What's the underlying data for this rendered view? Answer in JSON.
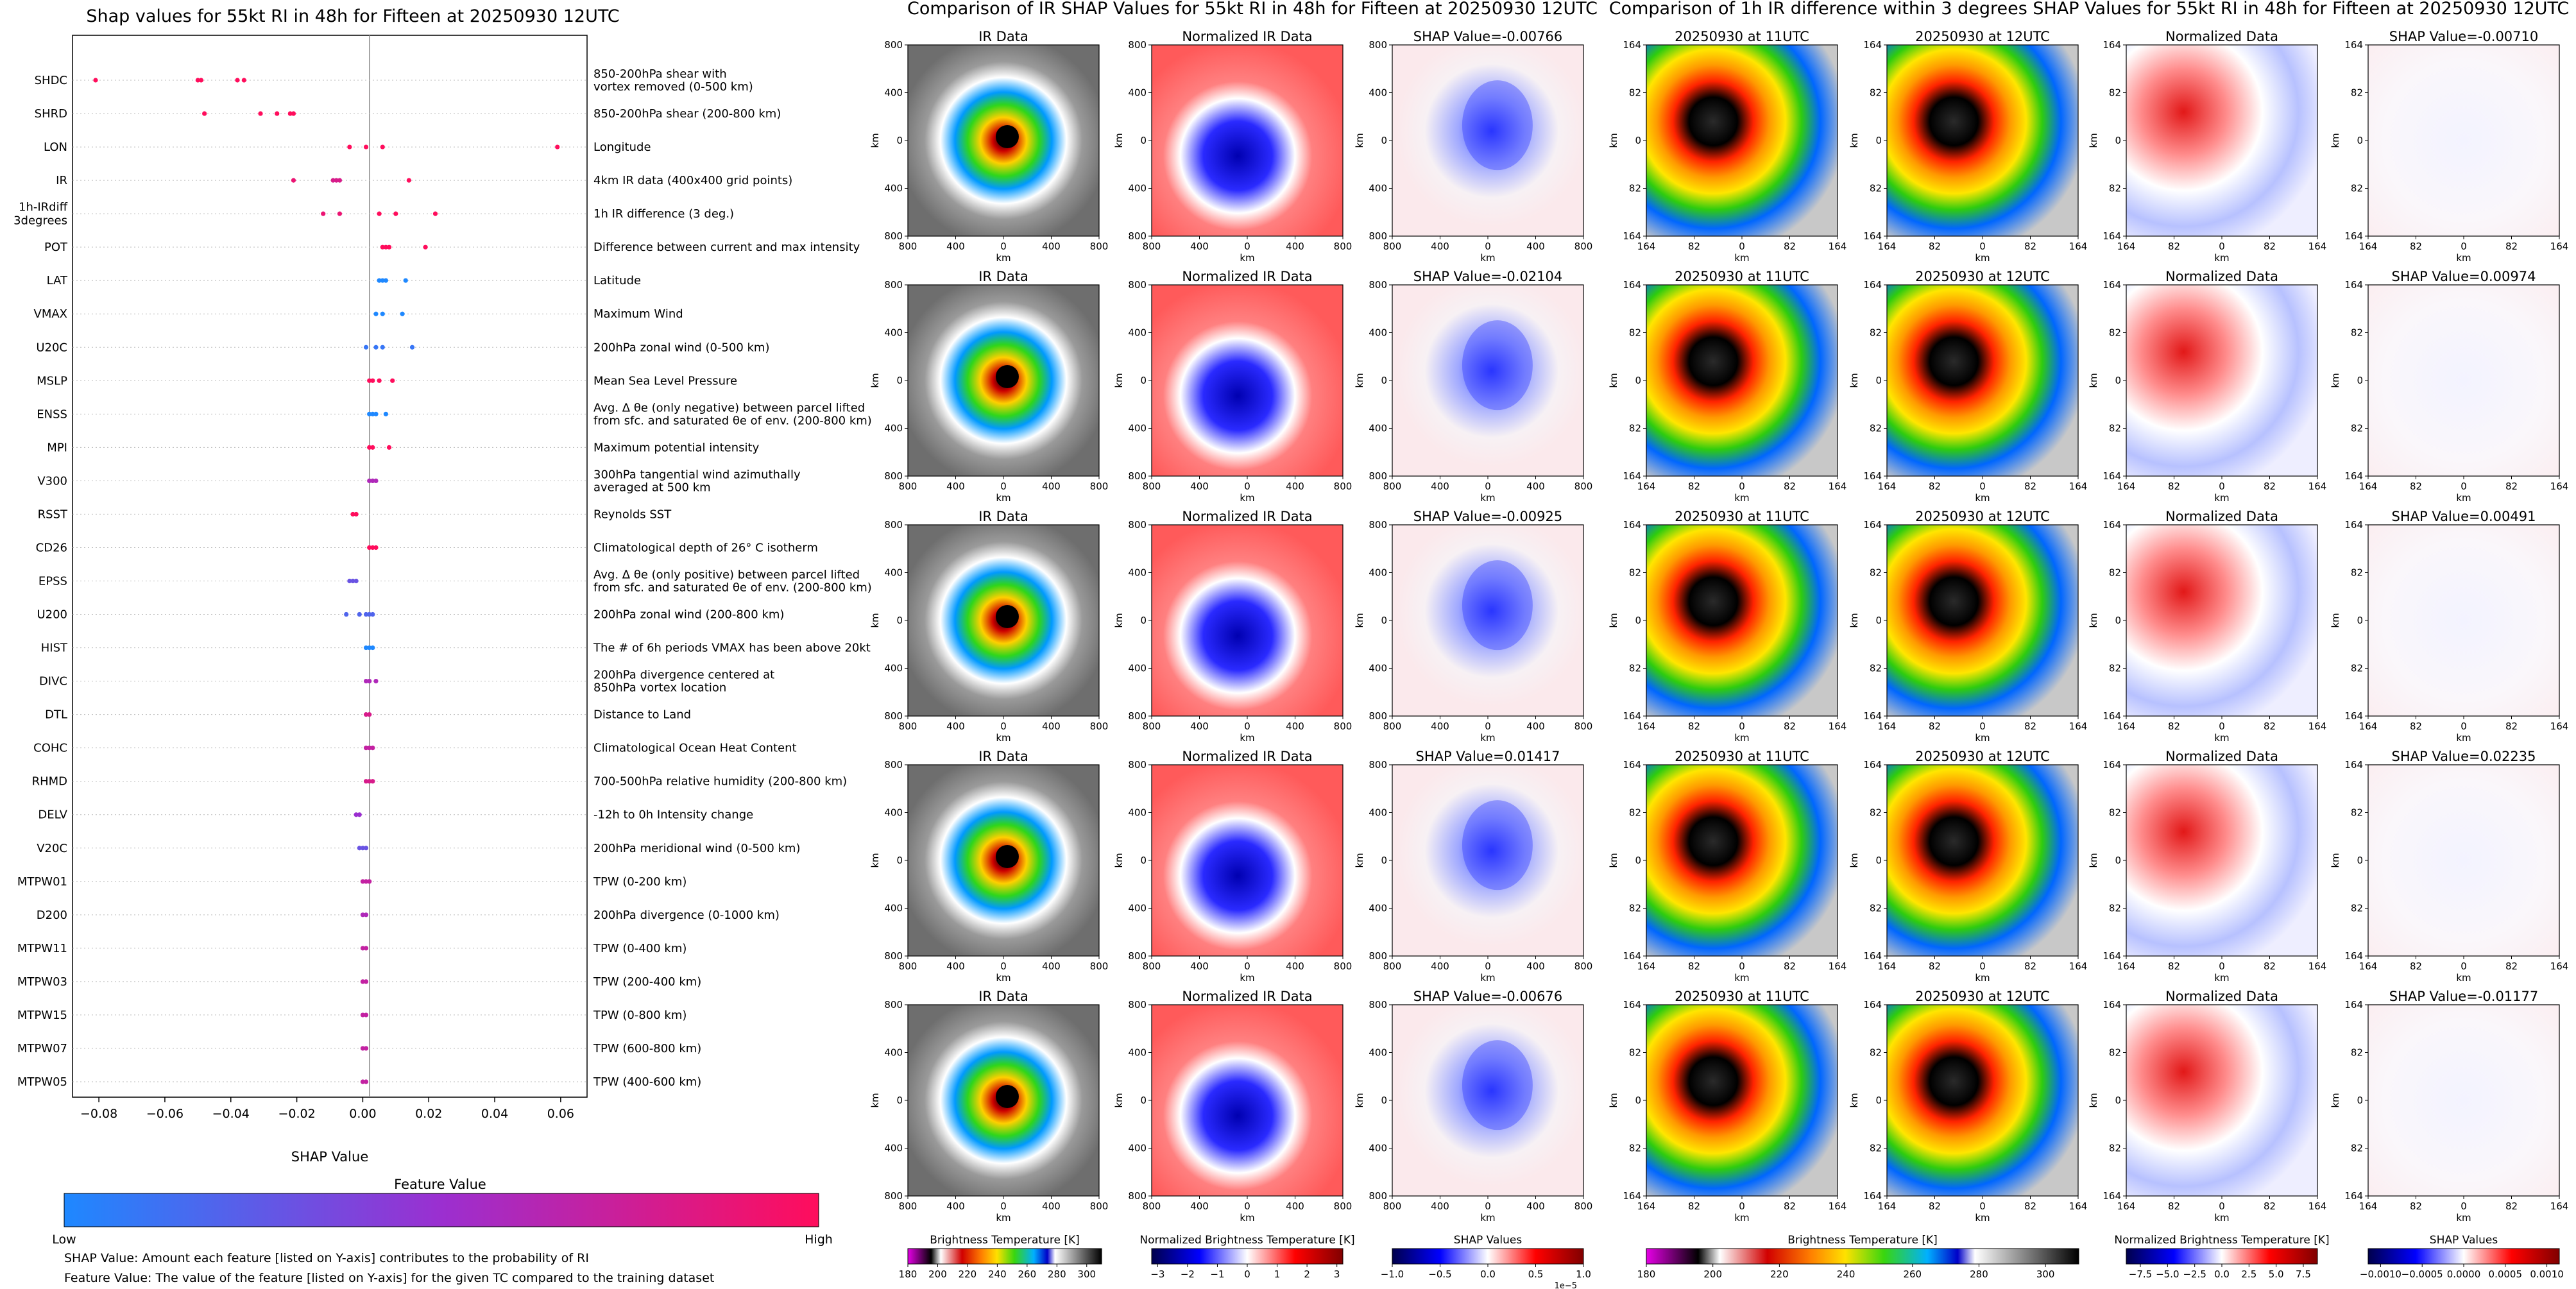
{
  "left_panel": {
    "title": "Shap values for 55kt RI in 48h for Fifteen at 20250930 12UTC",
    "xlabel": "SHAP Value",
    "xticks": [
      "−0.08",
      "−0.06",
      "−0.04",
      "−0.02",
      "0.00",
      "0.02",
      "0.04",
      "0.06"
    ],
    "colorbar_title": "Feature Value",
    "colorbar_low": "Low",
    "colorbar_high": "High",
    "note1": "SHAP Value: Amount each feature [listed on Y-axis] contributes to the probability of RI",
    "note2": "Feature Value: The value of the feature [listed on Y-axis] for the given TC compared to the training dataset",
    "colors": {
      "low": "#1e88ff",
      "mid": "#9b2fd0",
      "high": "#ff0d5c"
    }
  },
  "chart_data": [
    {
      "type": "scatter",
      "title": "Shap values for 55kt RI in 48h for Fifteen at 20250930 12UTC",
      "xlabel": "SHAP Value",
      "ylabel": "",
      "xlim": [
        -0.088,
        0.068
      ],
      "grid": false,
      "features": [
        {
          "name": "SHDC",
          "desc": "850-200hPa shear with\nvortex removed (0-500 km)",
          "points": [
            [
              -0.081,
              1
            ],
            [
              -0.05,
              1
            ],
            [
              -0.049,
              1
            ],
            [
              -0.038,
              1
            ],
            [
              -0.036,
              1
            ]
          ]
        },
        {
          "name": "SHRD",
          "desc": "850-200hPa shear (200-800 km)",
          "points": [
            [
              -0.048,
              1
            ],
            [
              -0.031,
              1
            ],
            [
              -0.026,
              1
            ],
            [
              -0.022,
              1
            ],
            [
              -0.021,
              1
            ]
          ]
        },
        {
          "name": "LON",
          "desc": "Longitude",
          "points": [
            [
              -0.004,
              1
            ],
            [
              0.001,
              1
            ],
            [
              0.006,
              1
            ],
            [
              0.059,
              1
            ]
          ]
        },
        {
          "name": "IR",
          "desc": "4km IR data (400x400 grid points)",
          "points": [
            [
              -0.021,
              0.9
            ],
            [
              -0.009,
              0.8
            ],
            [
              -0.008,
              0.8
            ],
            [
              -0.007,
              0.8
            ],
            [
              0.014,
              1
            ]
          ]
        },
        {
          "name": "1h-IRdiff\n3degrees",
          "desc": "1h IR difference (3 deg.)",
          "points": [
            [
              -0.012,
              0.9
            ],
            [
              -0.007,
              0.9
            ],
            [
              0.005,
              1
            ],
            [
              0.01,
              1
            ],
            [
              0.022,
              1
            ]
          ]
        },
        {
          "name": "POT",
          "desc": "Difference between current and max intensity",
          "points": [
            [
              0.006,
              1
            ],
            [
              0.007,
              1
            ],
            [
              0.008,
              1
            ],
            [
              0.019,
              1
            ]
          ]
        },
        {
          "name": "LAT",
          "desc": "Latitude",
          "points": [
            [
              0.005,
              0
            ],
            [
              0.006,
              0
            ],
            [
              0.007,
              0
            ],
            [
              0.013,
              0
            ]
          ]
        },
        {
          "name": "VMAX",
          "desc": "Maximum Wind",
          "points": [
            [
              0.004,
              0
            ],
            [
              0.006,
              0
            ],
            [
              0.012,
              0
            ]
          ]
        },
        {
          "name": "U20C",
          "desc": "200hPa zonal wind (0-500 km)",
          "points": [
            [
              0.001,
              0.1
            ],
            [
              0.004,
              0.1
            ],
            [
              0.006,
              0.1
            ],
            [
              0.015,
              0.1
            ]
          ]
        },
        {
          "name": "MSLP",
          "desc": "Mean Sea Level Pressure",
          "points": [
            [
              0.002,
              1
            ],
            [
              0.003,
              1
            ],
            [
              0.005,
              1
            ],
            [
              0.009,
              1
            ]
          ]
        },
        {
          "name": "ENSS",
          "desc": "Avg. Δ θe (only negative) between parcel lifted\nfrom sfc. and saturated θe of env. (200-800 km)",
          "points": [
            [
              0.002,
              0
            ],
            [
              0.003,
              0
            ],
            [
              0.004,
              0
            ],
            [
              0.007,
              0
            ]
          ]
        },
        {
          "name": "MPI",
          "desc": "Maximum potential intensity",
          "points": [
            [
              0.002,
              1
            ],
            [
              0.003,
              1
            ],
            [
              0.008,
              1
            ]
          ]
        },
        {
          "name": "V300",
          "desc": "300hPa tangential wind azimuthally\naveraged at 500 km",
          "points": [
            [
              0.002,
              0.6
            ],
            [
              0.003,
              0.6
            ],
            [
              0.004,
              0.6
            ]
          ]
        },
        {
          "name": "RSST",
          "desc": "Reynolds SST",
          "points": [
            [
              -0.003,
              1
            ],
            [
              -0.002,
              1
            ]
          ]
        },
        {
          "name": "CD26",
          "desc": "Climatological depth of 26° C isotherm",
          "points": [
            [
              0.002,
              1
            ],
            [
              0.003,
              1
            ],
            [
              0.004,
              1
            ]
          ]
        },
        {
          "name": "EPSS",
          "desc": "Avg. Δ θe (only positive) between parcel lifted\nfrom sfc. and saturated θe of env. (200-800 km)",
          "points": [
            [
              -0.004,
              0.3
            ],
            [
              -0.003,
              0.3
            ],
            [
              -0.002,
              0.3
            ]
          ]
        },
        {
          "name": "U200",
          "desc": "200hPa zonal wind (200-800 km)",
          "points": [
            [
              -0.005,
              0.2
            ],
            [
              -0.001,
              0.2
            ],
            [
              0.001,
              0.2
            ],
            [
              0.002,
              0.2
            ],
            [
              0.003,
              0.2
            ]
          ]
        },
        {
          "name": "HIST",
          "desc": "The # of 6h periods VMAX has been above 20kt",
          "points": [
            [
              0.001,
              0
            ],
            [
              0.002,
              0
            ],
            [
              0.003,
              0
            ]
          ]
        },
        {
          "name": "DIVC",
          "desc": "200hPa divergence centered at\n850hPa vortex location",
          "points": [
            [
              0.001,
              0.6
            ],
            [
              0.002,
              0.6
            ],
            [
              0.004,
              0.6
            ]
          ]
        },
        {
          "name": "DTL",
          "desc": "Distance to Land",
          "points": [
            [
              0.001,
              0.8
            ],
            [
              0.002,
              0.8
            ]
          ]
        },
        {
          "name": "COHC",
          "desc": "Climatological Ocean Heat Content",
          "points": [
            [
              0.001,
              0.7
            ],
            [
              0.002,
              0.7
            ],
            [
              0.003,
              0.7
            ]
          ]
        },
        {
          "name": "RHMD",
          "desc": "700-500hPa relative humidity (200-800 km)",
          "points": [
            [
              0.001,
              0.8
            ],
            [
              0.002,
              0.8
            ],
            [
              0.003,
              0.8
            ]
          ]
        },
        {
          "name": "DELV",
          "desc": "-12h to 0h Intensity change",
          "points": [
            [
              -0.002,
              0.5
            ],
            [
              -0.001,
              0.5
            ]
          ]
        },
        {
          "name": "V20C",
          "desc": "200hPa meridional wind (0-500 km)",
          "points": [
            [
              -0.001,
              0.3
            ],
            [
              0.0,
              0.3
            ],
            [
              0.001,
              0.3
            ]
          ]
        },
        {
          "name": "MTPW01",
          "desc": "TPW (0-200 km)",
          "points": [
            [
              0.0,
              0.7
            ],
            [
              0.001,
              0.7
            ],
            [
              0.002,
              0.7
            ]
          ]
        },
        {
          "name": "D200",
          "desc": "200hPa divergence (0-1000 km)",
          "points": [
            [
              0.0,
              0.6
            ],
            [
              0.001,
              0.6
            ]
          ]
        },
        {
          "name": "MTPW11",
          "desc": "TPW (0-400 km)",
          "points": [
            [
              0.0,
              0.7
            ],
            [
              0.001,
              0.7
            ]
          ]
        },
        {
          "name": "MTPW03",
          "desc": "TPW (200-400 km)",
          "points": [
            [
              0.0,
              0.7
            ],
            [
              0.001,
              0.7
            ]
          ]
        },
        {
          "name": "MTPW15",
          "desc": "TPW (0-800 km)",
          "points": [
            [
              0.0,
              0.7
            ],
            [
              0.001,
              0.7
            ]
          ]
        },
        {
          "name": "MTPW07",
          "desc": "TPW (600-800 km)",
          "points": [
            [
              0.0,
              0.7
            ],
            [
              0.001,
              0.7
            ]
          ]
        },
        {
          "name": "MTPW05",
          "desc": "TPW (400-600 km)",
          "points": [
            [
              0.0,
              0.7
            ],
            [
              0.001,
              0.7
            ]
          ]
        }
      ]
    },
    {
      "type": "heatmap",
      "title": "Comparison of IR SHAP Values for 55kt RI in 48h for Fifteen at 20250930 12UTC",
      "columns": [
        {
          "kind": "ir",
          "xticks": [
            "800",
            "400",
            "0",
            "400",
            "800"
          ],
          "yticks": [
            "800",
            "400",
            "0",
            "400",
            "800"
          ],
          "xlabel": "km",
          "ylabel": "km"
        },
        {
          "kind": "norm",
          "xticks": [
            "800",
            "400",
            "0",
            "400",
            "800"
          ],
          "yticks": [
            "800",
            "400",
            "0",
            "400",
            "800"
          ],
          "xlabel": "km",
          "ylabel": "km"
        },
        {
          "kind": "shap",
          "xticks": [
            "800",
            "400",
            "0",
            "400",
            "800"
          ],
          "yticks": [
            "800",
            "400",
            "0",
            "400",
            "800"
          ],
          "xlabel": "km",
          "ylabel": "km"
        }
      ],
      "rows": [
        [
          "IR Data",
          "Normalized IR Data",
          "SHAP Value=-0.00766"
        ],
        [
          "IR Data",
          "Normalized IR Data",
          "SHAP Value=-0.02104"
        ],
        [
          "IR Data",
          "Normalized IR Data",
          "SHAP Value=-0.00925"
        ],
        [
          "IR Data",
          "Normalized IR Data",
          "SHAP Value=0.01417"
        ],
        [
          "IR Data",
          "Normalized IR Data",
          "SHAP Value=-0.00676"
        ]
      ],
      "colorbars": [
        {
          "label": "Brightness Temperature [K]",
          "ticks": [
            "180",
            "200",
            "220",
            "240",
            "260",
            "280",
            "300"
          ],
          "range": [
            180,
            310
          ]
        },
        {
          "label": "Normalized Brightness Temperature [K]",
          "ticks": [
            "−3",
            "−2",
            "−1",
            "0",
            "1",
            "2",
            "3"
          ],
          "range": [
            -3.2,
            3.2
          ]
        },
        {
          "label": "SHAP Values",
          "ticks": [
            "−1.0",
            "−0.5",
            "0.0",
            "0.5",
            "1.0"
          ],
          "range": [
            -1,
            1
          ],
          "offset": "1e−5"
        }
      ]
    },
    {
      "type": "heatmap",
      "title": "Comparison of 1h IR difference within 3 degrees SHAP Values for 55kt RI in 48h for Fifteen at 20250930 12UTC",
      "columns": [
        {
          "kind": "ir",
          "xticks": [
            "164",
            "82",
            "0",
            "82",
            "164"
          ],
          "yticks": [
            "164",
            "82",
            "0",
            "82",
            "164"
          ],
          "xlabel": "km",
          "ylabel": "km"
        },
        {
          "kind": "ir",
          "xticks": [
            "164",
            "82",
            "0",
            "82",
            "164"
          ],
          "yticks": [
            "164",
            "82",
            "0",
            "82",
            "164"
          ],
          "xlabel": "km",
          "ylabel": "km"
        },
        {
          "kind": "norm",
          "xticks": [
            "164",
            "82",
            "0",
            "82",
            "164"
          ],
          "yticks": [
            "164",
            "82",
            "0",
            "82",
            "164"
          ],
          "xlabel": "km",
          "ylabel": "km"
        },
        {
          "kind": "shap",
          "xticks": [
            "164",
            "82",
            "0",
            "82",
            "164"
          ],
          "yticks": [
            "164",
            "82",
            "0",
            "82",
            "164"
          ],
          "xlabel": "km",
          "ylabel": "km"
        }
      ],
      "rows": [
        [
          "20250930 at 11UTC",
          "20250930 at 12UTC",
          "Normalized Data",
          "SHAP Value=-0.00710"
        ],
        [
          "20250930 at 11UTC",
          "20250930 at 12UTC",
          "Normalized Data",
          "SHAP Value=0.00974"
        ],
        [
          "20250930 at 11UTC",
          "20250930 at 12UTC",
          "Normalized Data",
          "SHAP Value=0.00491"
        ],
        [
          "20250930 at 11UTC",
          "20250930 at 12UTC",
          "Normalized Data",
          "SHAP Value=0.02235"
        ],
        [
          "20250930 at 11UTC",
          "20250930 at 12UTC",
          "Normalized Data",
          "SHAP Value=-0.01177"
        ]
      ],
      "colorbars": [
        {
          "label": "Brightness Temperature [K]",
          "ticks": [
            "180",
            "200",
            "220",
            "240",
            "260",
            "280",
            "300"
          ],
          "range": [
            180,
            310
          ]
        },
        {
          "label": "Normalized Brightness Temperature [K]",
          "ticks": [
            "−7.5",
            "−5.0",
            "−2.5",
            "0.0",
            "2.5",
            "5.0",
            "7.5"
          ],
          "range": [
            -8.8,
            8.8
          ]
        },
        {
          "label": "SHAP Values",
          "ticks": [
            "−0.0010",
            "−0.0005",
            "0.0000",
            "0.0005",
            "0.0010"
          ],
          "range": [
            -0.00115,
            0.00115
          ]
        }
      ]
    }
  ]
}
